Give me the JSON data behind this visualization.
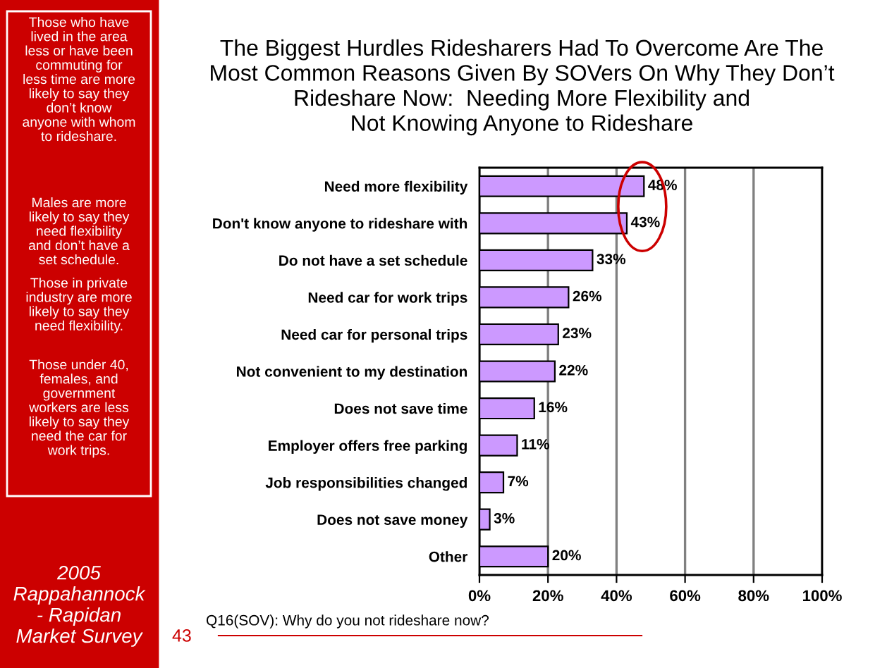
{
  "chart_data": {
    "type": "bar",
    "orientation": "horizontal",
    "title": "The Biggest Hurdles Ridesharers Had To Overcome Are The\nMost Common Reasons Given By SOVers On Why They Don’t\nRideshare Now:  Needing More Flexibility and\nNot Knowing Anyone to Rideshare",
    "categories": [
      "Need more flexibility",
      "Don't know anyone to rideshare with",
      "Do not have a set schedule",
      "Need car for work trips",
      "Need car for personal trips",
      "Not convenient to my destination",
      "Does not save time",
      "Employer offers free parking",
      "Job responsibilities changed",
      "Does not save money",
      "Other"
    ],
    "values": [
      48,
      43,
      33,
      26,
      23,
      22,
      16,
      11,
      7,
      3,
      20
    ],
    "value_labels": [
      "48%",
      "43%",
      "33%",
      "26%",
      "23%",
      "22%",
      "16%",
      "11%",
      "7%",
      "3%",
      "20%"
    ],
    "color": "#cc99ff",
    "xlim": [
      0,
      100
    ],
    "xticks": [
      {
        "value": 0,
        "label": "0%"
      },
      {
        "value": 20,
        "label": "20%"
      },
      {
        "value": 40,
        "label": "40%"
      },
      {
        "value": 60,
        "label": "60%"
      },
      {
        "value": 80,
        "label": "80%"
      },
      {
        "value": 100,
        "label": "100%"
      }
    ],
    "grid": "x",
    "annotations": [
      "Those who have\nlived in the area\nless or have been\ncommuting for\nless time are more\nlikely to say they\ndon’t know\nanyone with whom\nto rideshare.",
      "Males are more\nlikely to say they\nneed flexibility\nand don’t have a\nset schedule.",
      "Those in private\nindustry are more\nlikely to say they\nneed flexibility.",
      "Those under 40,\nfemales, and\ngovernment\nworkers are less\nlikely to say they\nneed the car for\nwork trips.",
      "2005\nRappahannock\n- Rapidan\nMarket Survey",
      "Q16(SOV): Why do you not rideshare now?",
      "43"
    ]
  }
}
